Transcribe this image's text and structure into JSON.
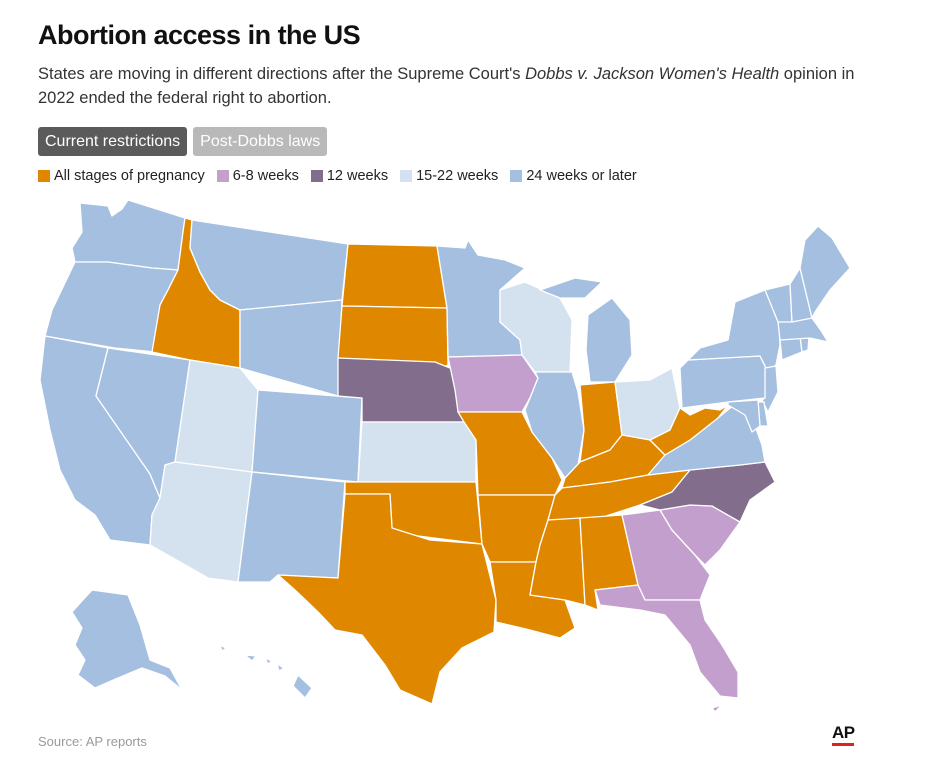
{
  "header": {
    "title": "Abortion access in the US",
    "subtitle_part1": "States are moving in different directions after the Supreme Court's ",
    "subtitle_case": "Dobbs v. Jackson Women's Health",
    "subtitle_part2": " opinion in 2022 ended the federal right to abortion."
  },
  "tabs": [
    {
      "label": "Current restrictions",
      "active": true
    },
    {
      "label": "Post-Dobbs laws",
      "active": false
    }
  ],
  "legend": [
    {
      "label": "All stages of pregnancy",
      "color": "#e08700"
    },
    {
      "label": "6-8 weeks",
      "color": "#c39fcd"
    },
    {
      "label": "12 weeks",
      "color": "#836d8c"
    },
    {
      "label": "15-22 weeks",
      "color": "#d4e1ef"
    },
    {
      "label": "24 weeks or later",
      "color": "#a4bfdf"
    }
  ],
  "map": {
    "categories": {
      "all": "#e08700",
      "w6_8": "#c39fcd",
      "w12": "#836d8c",
      "w15_22": "#d4e1ef",
      "w24": "#a4bfdf"
    },
    "states": {
      "WA": "w24",
      "OR": "w24",
      "CA": "w24",
      "NV": "w24",
      "ID": "all",
      "MT": "w24",
      "WY": "w24",
      "UT": "w15_22",
      "AZ": "w15_22",
      "CO": "w24",
      "NM": "w24",
      "ND": "all",
      "SD": "all",
      "NE": "w12",
      "KS": "w15_22",
      "OK": "all",
      "TX": "all",
      "MN": "w24",
      "IA": "w6_8",
      "MO": "all",
      "AR": "all",
      "LA": "all",
      "WI": "w15_22",
      "IL": "w24",
      "MI": "w24",
      "IN": "all",
      "OH": "w15_22",
      "KY": "all",
      "TN": "all",
      "MS": "all",
      "AL": "all",
      "GA": "w6_8",
      "FL": "w6_8",
      "SC": "w6_8",
      "NC": "w12",
      "VA": "w24",
      "WV": "all",
      "PA": "w24",
      "NY": "w24",
      "NJ": "w24",
      "DE": "w24",
      "MD": "w24",
      "CT": "w24",
      "RI": "w24",
      "MA": "w24",
      "VT": "w24",
      "NH": "w24",
      "ME": "w24",
      "AK": "w24",
      "HI": "w24"
    }
  },
  "footer": {
    "source": "Source: AP reports",
    "logo": "AP"
  }
}
